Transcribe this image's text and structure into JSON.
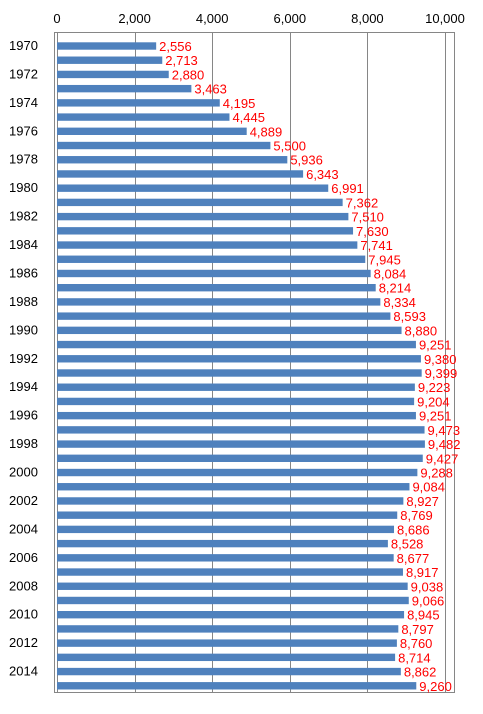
{
  "chart_data": {
    "type": "bar",
    "orientation": "horizontal",
    "title": "",
    "xlabel": "",
    "ylabel": "",
    "xlim": [
      0,
      10000
    ],
    "x_ticks": [
      0,
      2000,
      4000,
      6000,
      8000,
      10000
    ],
    "x_tick_labels": [
      "0",
      "2,000",
      "4,000",
      "6,000",
      "8,000",
      "10,000"
    ],
    "grid": true,
    "legend": "none",
    "bar_color": "#4f81bd",
    "label_color": "#ff0000",
    "categories": [
      "1970",
      "1971",
      "1972",
      "1973",
      "1974",
      "1975",
      "1976",
      "1977",
      "1978",
      "1979",
      "1980",
      "1981",
      "1982",
      "1983",
      "1984",
      "1985",
      "1986",
      "1987",
      "1988",
      "1989",
      "1990",
      "1991",
      "1992",
      "1993",
      "1994",
      "1995",
      "1996",
      "1997",
      "1998",
      "1999",
      "2000",
      "2001",
      "2002",
      "2003",
      "2004",
      "2005",
      "2006",
      "2007",
      "2008",
      "2009",
      "2010",
      "2011",
      "2012",
      "2013",
      "2014",
      "2015"
    ],
    "category_labels_shown": [
      "1970",
      "",
      "1972",
      "",
      "1974",
      "",
      "1976",
      "",
      "1978",
      "",
      "1980",
      "",
      "1982",
      "",
      "1984",
      "",
      "1986",
      "",
      "1988",
      "",
      "1990",
      "",
      "1992",
      "",
      "1994",
      "",
      "1996",
      "",
      "1998",
      "",
      "2000",
      "",
      "2002",
      "",
      "2004",
      "",
      "2006",
      "",
      "2008",
      "",
      "2010",
      "",
      "2012",
      "",
      "2014",
      ""
    ],
    "values": [
      2556,
      2713,
      2880,
      3463,
      4195,
      4445,
      4889,
      5500,
      5936,
      6343,
      6991,
      7362,
      7510,
      7630,
      7741,
      7945,
      8084,
      8214,
      8334,
      8593,
      8880,
      9251,
      9380,
      9399,
      9223,
      9204,
      9251,
      9473,
      9482,
      9427,
      9288,
      9084,
      8927,
      8769,
      8686,
      8528,
      8677,
      8917,
      9038,
      9066,
      8945,
      8797,
      8760,
      8714,
      8862,
      9260
    ],
    "value_labels": [
      "2,556",
      "2,713",
      "2,880",
      "3,463",
      "4,195",
      "4,445",
      "4,889",
      "5,500",
      "5,936",
      "6,343",
      "6,991",
      "7,362",
      "7,510",
      "7,630",
      "7,741",
      "7,945",
      "8,084",
      "8,214",
      "8,334",
      "8,593",
      "8,880",
      "9,251",
      "9,380",
      "9,399",
      "9,223",
      "9,204",
      "9,251",
      "9,473",
      "9,482",
      "9,427",
      "9,288",
      "9,084",
      "8,927",
      "8,769",
      "8,686",
      "8,528",
      "8,677",
      "8,917",
      "9,038",
      "9,066",
      "8,945",
      "8,797",
      "8,760",
      "8,714",
      "8,862",
      "9,260"
    ]
  }
}
